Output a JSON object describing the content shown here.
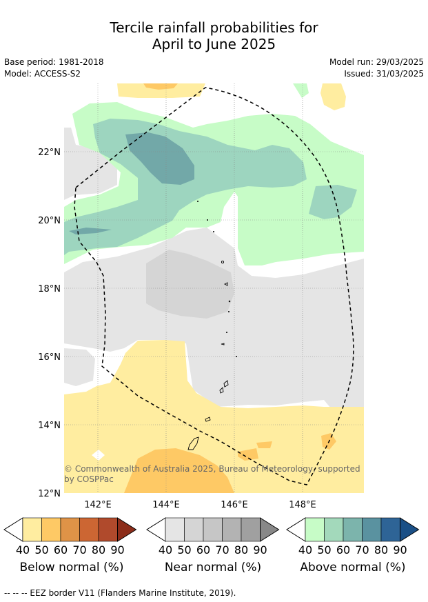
{
  "title_line1": "Tercile rainfall probabilities for",
  "title_line2": "April to June 2025",
  "meta_left": {
    "base_period": "Base period: 1981-2018",
    "model": "Model: ACCESS-S2"
  },
  "meta_right": {
    "model_run": "Model run: 29/03/2025",
    "issued": "Issued: 31/03/2025"
  },
  "map": {
    "lat_labels": [
      "22°N",
      "20°N",
      "18°N",
      "16°N",
      "14°N",
      "12°N"
    ],
    "lon_labels": [
      "142°E",
      "144°E",
      "146°E",
      "148°E"
    ],
    "copyright_line1": "© Commonwealth of Australia 2025, Bureau of Meteorology, supported",
    "copyright_line2": "by COSPPac",
    "colors": {
      "below40": "#ffeda0",
      "below50": "#fec965",
      "near40": "#e5e5e5",
      "near50": "#d5d5d5",
      "above40": "#c7fcc7",
      "above50": "#9dd5bf",
      "above60": "#72a8a8"
    }
  },
  "colorbars": [
    {
      "title": "Below normal (%)",
      "ticks": [
        "40",
        "50",
        "60",
        "70",
        "80",
        "90"
      ],
      "colors": [
        "#ffeda0",
        "#fec965",
        "#df9347",
        "#cc6633",
        "#b04a2c",
        "#8c2d1a"
      ]
    },
    {
      "title": "Near normal (%)",
      "ticks": [
        "40",
        "50",
        "60",
        "70",
        "80",
        "90"
      ],
      "colors": [
        "#e5e5e5",
        "#d5d5d5",
        "#c6c6c6",
        "#b3b3b3",
        "#a0a0a0",
        "#888888"
      ]
    },
    {
      "title": "Above normal (%)",
      "ticks": [
        "40",
        "50",
        "60",
        "70",
        "80",
        "90"
      ],
      "colors": [
        "#c7fcc7",
        "#a3d9bb",
        "#7cb4ac",
        "#5a92a0",
        "#2e6496",
        "#1a4f86"
      ]
    }
  ],
  "footnote": "--  --  -- EEZ border V11 (Flanders Marine Institute, 2019)."
}
